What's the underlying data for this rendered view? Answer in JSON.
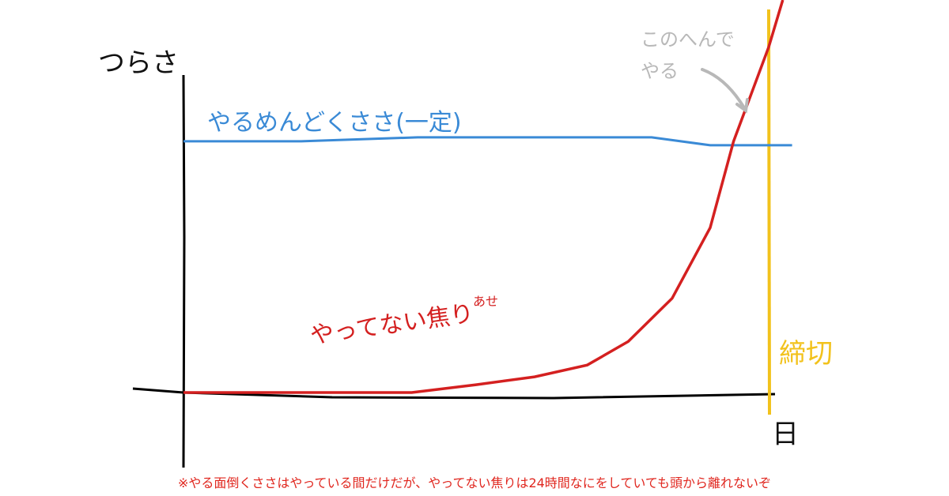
{
  "chart_data": {
    "type": "line",
    "title": "",
    "ylabel": "つらさ",
    "xlabel": "日",
    "xlim": [
      0,
      105
    ],
    "ylim": [
      0,
      100
    ],
    "grid": false,
    "series": [
      {
        "name": "やるめんどくささ(一定)",
        "color": "#3a8ad6",
        "x": [
          0,
          20,
          40,
          60,
          80,
          90,
          100,
          104
        ],
        "y": [
          64,
          64,
          65,
          65,
          65,
          63,
          63,
          63
        ]
      },
      {
        "name": "やってない焦り",
        "color": "#d42020",
        "x": [
          0,
          20,
          39,
          50,
          60,
          69,
          76,
          83.5,
          90,
          94,
          97,
          100,
          102.4
        ],
        "y": [
          0,
          0,
          0,
          2,
          4,
          7,
          13,
          24,
          42,
          64,
          76,
          88,
          100
        ]
      }
    ],
    "deadline": {
      "label": "締切",
      "x": 100,
      "color": "#f2c21c"
    },
    "annotations": [
      {
        "text": "このへんで\nやる",
        "color": "#b8b8b8",
        "points_to": {
          "x": 94,
          "y": 64
        }
      }
    ],
    "series_label_ruby": "あせ",
    "caption": "※やる面倒くささはやっている間だけだが、やってない焦りは24時間なにをしていても頭から離れないぞ",
    "caption_color": "#e0261e"
  }
}
